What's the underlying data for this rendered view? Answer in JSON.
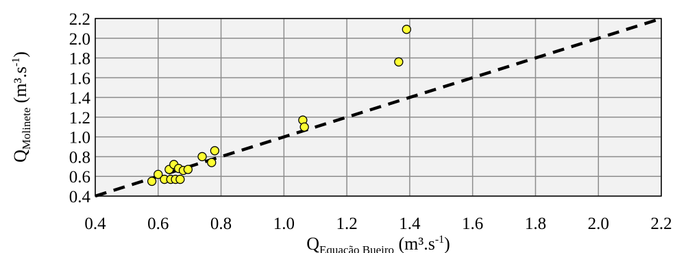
{
  "chart_data": {
    "type": "scatter",
    "title": "",
    "xlabel": {
      "main": "Q",
      "sub": "Equação Bueiro",
      "unit_pre": " (m³.s",
      "unit_sup": "-1",
      "unit_post": ")"
    },
    "ylabel": {
      "main": "Q",
      "sub": "Molinete",
      "unit_pre": "  (m³.s",
      "unit_sup": "-1",
      "unit_post": ")"
    },
    "xlim": [
      0.4,
      2.2
    ],
    "ylim": [
      0.4,
      2.2
    ],
    "xticks": [
      "0.4",
      "0.6",
      "0.8",
      "1.0",
      "1.2",
      "1.4",
      "1.6",
      "1.8",
      "2.0",
      "2.2"
    ],
    "yticks": [
      "0.4",
      "0.6",
      "0.8",
      "1.0",
      "1.2",
      "1.4",
      "1.6",
      "1.8",
      "2.0",
      "2.2"
    ],
    "grid": true,
    "legend": "none",
    "point_color": "#ffff33",
    "reference_line": {
      "style": "dashed",
      "color": "#000000",
      "x": [
        0.4,
        2.2
      ],
      "y": [
        0.4,
        2.2
      ]
    },
    "points": [
      {
        "x": 0.58,
        "y": 0.55
      },
      {
        "x": 0.6,
        "y": 0.62
      },
      {
        "x": 0.62,
        "y": 0.57
      },
      {
        "x": 0.635,
        "y": 0.67
      },
      {
        "x": 0.64,
        "y": 0.57
      },
      {
        "x": 0.65,
        "y": 0.72
      },
      {
        "x": 0.655,
        "y": 0.57
      },
      {
        "x": 0.665,
        "y": 0.68
      },
      {
        "x": 0.67,
        "y": 0.57
      },
      {
        "x": 0.68,
        "y": 0.66
      },
      {
        "x": 0.695,
        "y": 0.67
      },
      {
        "x": 0.74,
        "y": 0.8
      },
      {
        "x": 0.77,
        "y": 0.74
      },
      {
        "x": 0.78,
        "y": 0.86
      },
      {
        "x": 1.06,
        "y": 1.17
      },
      {
        "x": 1.065,
        "y": 1.1
      },
      {
        "x": 1.365,
        "y": 1.76
      },
      {
        "x": 1.39,
        "y": 2.09
      }
    ]
  }
}
